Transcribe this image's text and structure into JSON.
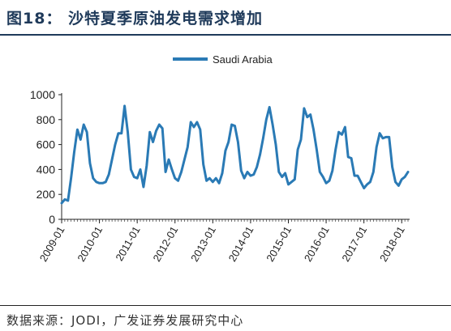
{
  "figure": {
    "title": "图18：  沙特夏季原油发电需求增加",
    "source": "数据来源：JODI，广发证券发展研究中心"
  },
  "colors": {
    "series": "#2a7ab5",
    "title": "#1f3a5a",
    "axis": "#222222"
  },
  "chart_data": {
    "type": "line",
    "title": "",
    "xlabel": "",
    "ylabel": "",
    "ylim": [
      0,
      1000
    ],
    "y_ticks": [
      0,
      200,
      400,
      600,
      800,
      1000
    ],
    "x_tick_labels": [
      "2009-01",
      "2010-01",
      "2011-01",
      "2012-01",
      "2013-01",
      "2014-01",
      "2015-01",
      "2016-01",
      "2017-01",
      "2018-01"
    ],
    "x_start": "2009-01",
    "x_step": "month",
    "grid": false,
    "legend_position": "top-center",
    "series": [
      {
        "name": "Saudi Arabia",
        "values": [
          130,
          160,
          150,
          330,
          540,
          720,
          640,
          760,
          700,
          450,
          330,
          300,
          290,
          290,
          300,
          360,
          480,
          600,
          690,
          690,
          910,
          700,
          400,
          340,
          330,
          400,
          260,
          430,
          700,
          620,
          710,
          760,
          730,
          380,
          480,
          400,
          330,
          310,
          380,
          480,
          580,
          780,
          740,
          780,
          720,
          440,
          310,
          330,
          300,
          330,
          290,
          370,
          550,
          620,
          760,
          750,
          620,
          390,
          330,
          380,
          350,
          360,
          420,
          520,
          650,
          800,
          900,
          760,
          600,
          380,
          340,
          370,
          280,
          300,
          320,
          560,
          640,
          890,
          820,
          840,
          720,
          560,
          380,
          340,
          290,
          310,
          390,
          560,
          700,
          680,
          740,
          500,
          490,
          350,
          350,
          300,
          250,
          280,
          300,
          380,
          580,
          690,
          650,
          660,
          660,
          420,
          300,
          270,
          320,
          340,
          380
        ]
      }
    ]
  }
}
